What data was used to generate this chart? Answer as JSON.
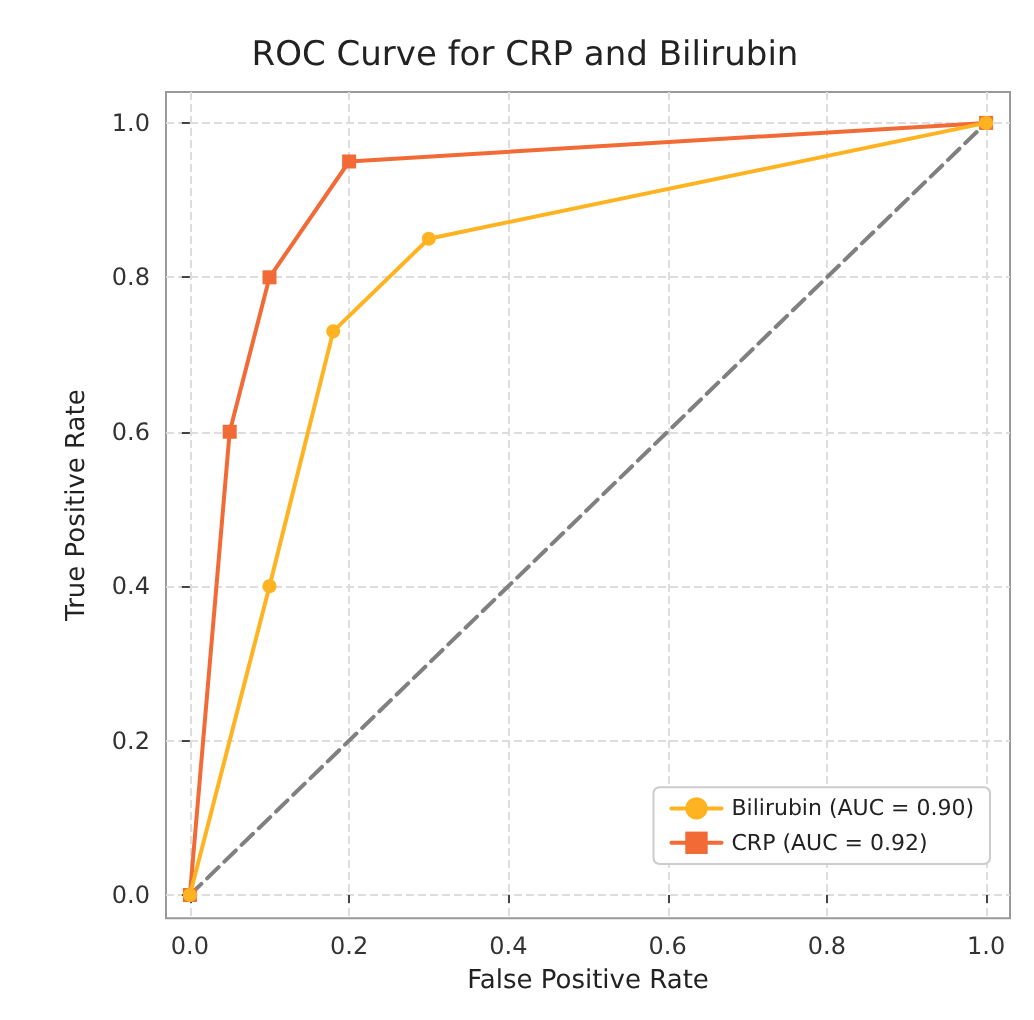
{
  "chart_data": {
    "type": "line",
    "title": "ROC Curve for CRP and Bilirubin",
    "xlabel": "False Positive Rate",
    "ylabel": "True Positive Rate",
    "series": [
      {
        "name": "Bilirubin (AUC = 0.90)",
        "color": "#ffb321",
        "marker": "circle",
        "line_style": "solid",
        "x": [
          0,
          0.1,
          0.18,
          0.3,
          1
        ],
        "values": [
          0,
          0.4,
          0.73,
          0.85,
          1
        ]
      },
      {
        "name": "CRP (AUC = 0.92)",
        "color": "#f26a35",
        "marker": "square",
        "line_style": "solid",
        "x": [
          0,
          0.05,
          0.1,
          0.2,
          1
        ],
        "values": [
          0,
          0.6,
          0.8,
          0.95,
          1
        ]
      },
      {
        "color": "#808080",
        "marker": "none",
        "line_style": "dashed",
        "x": [
          0,
          1
        ],
        "values": [
          0,
          1
        ]
      }
    ],
    "xlim": [
      -0.03,
      1.03
    ],
    "ylim": [
      -0.03,
      1.04
    ],
    "xticks": [
      {
        "value": 0,
        "label": "0.0"
      },
      {
        "value": 0.2,
        "label": "0.2"
      },
      {
        "value": 0.4,
        "label": "0.4"
      },
      {
        "value": 0.6,
        "label": "0.6"
      },
      {
        "value": 0.8,
        "label": "0.8"
      },
      {
        "value": 1,
        "label": "1.0"
      }
    ],
    "yticks": [
      {
        "value": 0,
        "label": "0.0"
      },
      {
        "value": 0.2,
        "label": "0.2"
      },
      {
        "value": 0.4,
        "label": "0.4"
      },
      {
        "value": 0.6,
        "label": "0.6"
      },
      {
        "value": 0.8,
        "label": "0.8"
      },
      {
        "value": 1,
        "label": "1.0"
      }
    ],
    "grid": true,
    "legend": "bottom right"
  }
}
